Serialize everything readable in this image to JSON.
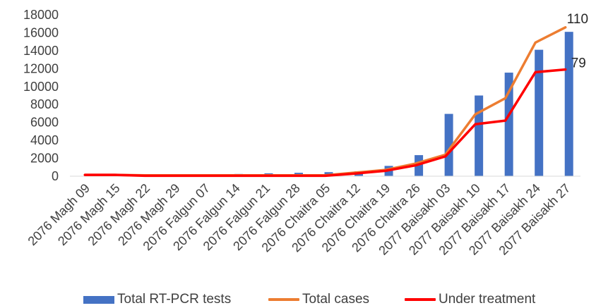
{
  "chart_data": {
    "type": "bar",
    "categories": [
      "2076 Magh 09",
      "2076 Magh 15",
      "2076 Magh 22",
      "2076 Magh 29",
      "2076 Falgun 07",
      "2076 Falgun 14",
      "2076 Falgun 21",
      "2076 Falgun 28",
      "2076 Chaitra 05",
      "2076 Chaitra 12",
      "2076 Chaitra 19",
      "2076 Chaitra 26",
      "2077 Baisakh 03",
      "2077 Baisakh 10",
      "2077 Baisakh 17",
      "2077 Baisakh 24",
      "2077 Baisakh 27"
    ],
    "series": [
      {
        "name": "Total RT-PCR tests",
        "kind": "bar",
        "color": "#4472C4",
        "values": [
          60,
          80,
          120,
          160,
          200,
          250,
          320,
          380,
          450,
          550,
          1150,
          2350,
          6950,
          9000,
          11550,
          14100,
          16100
        ]
      },
      {
        "name": "Total cases",
        "kind": "line",
        "color": "#ED7D31",
        "values": [
          150,
          150,
          100,
          100,
          100,
          100,
          100,
          100,
          100,
          400,
          700,
          1400,
          2400,
          6900,
          8700,
          14900,
          16600
        ]
      },
      {
        "name": "Under treatment",
        "kind": "line",
        "color": "#FF0000",
        "values": [
          150,
          150,
          50,
          50,
          50,
          50,
          50,
          50,
          50,
          300,
          600,
          1200,
          2200,
          5800,
          6200,
          11600,
          11900
        ]
      }
    ],
    "end_labels": [
      "110",
      "79"
    ],
    "ylim": [
      0,
      18000
    ],
    "yticks": [
      0,
      2000,
      4000,
      6000,
      8000,
      10000,
      12000,
      14000,
      16000,
      18000
    ],
    "grid": false,
    "legend_position": "bottom",
    "title": "",
    "xlabel": "",
    "ylabel": ""
  }
}
